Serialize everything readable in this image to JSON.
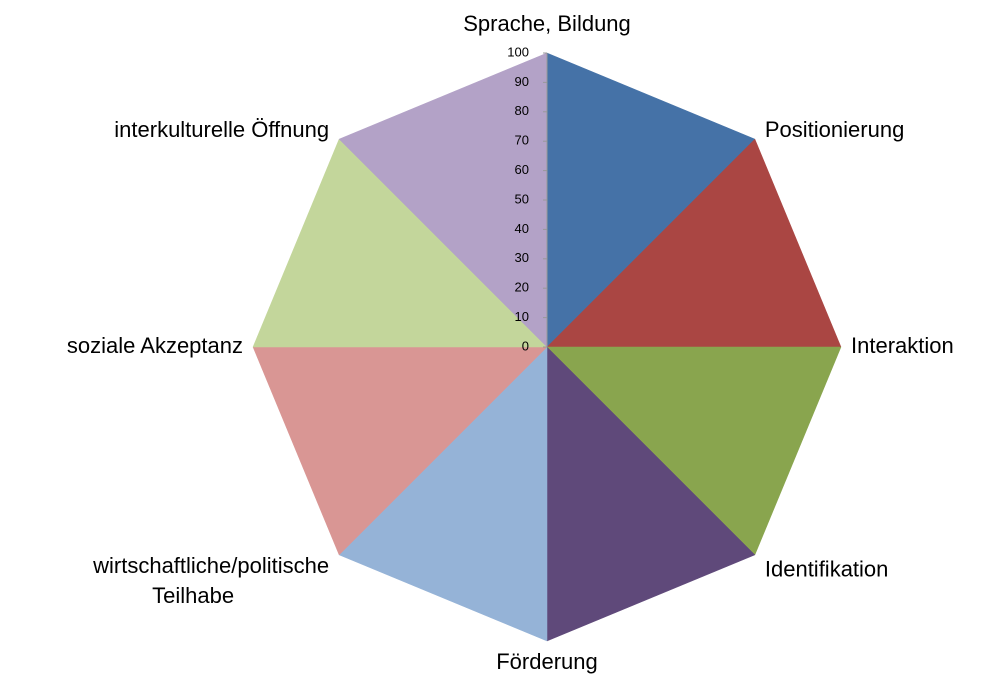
{
  "chart_data": {
    "type": "radar",
    "categories": [
      "Sprache, Bildung",
      "Positionierung",
      "Interaktion",
      "Identifikation",
      "Förderung",
      "wirtschaftliche/politische Teilhabe",
      "soziale Akzeptanz",
      "interkulturelle Öffnung"
    ],
    "values": [
      100,
      100,
      100,
      100,
      100,
      100,
      100,
      100
    ],
    "colors": [
      "#4572a7",
      "#aa4643",
      "#89a54e",
      "#5f497a",
      "#95b3d7",
      "#d99694",
      "#c3d69b",
      "#b3a2c7"
    ],
    "ylim": [
      0,
      100
    ],
    "yticks": [
      0,
      10,
      20,
      30,
      40,
      50,
      60,
      70,
      80,
      90,
      100
    ]
  }
}
